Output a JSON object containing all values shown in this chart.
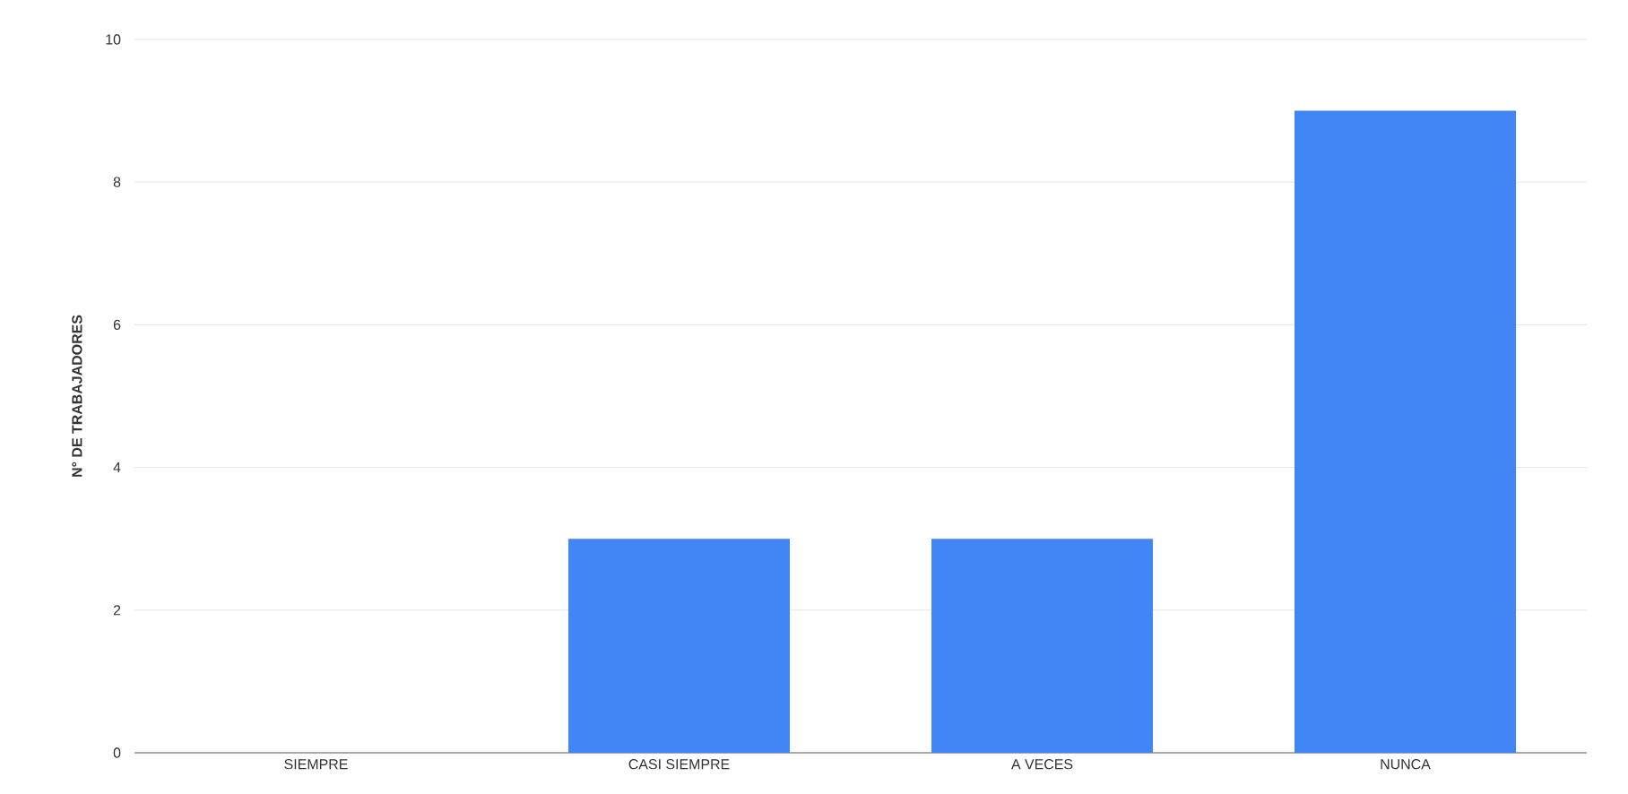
{
  "chart_data": {
    "type": "bar",
    "ylabel": "N° DE TRABAJADORES",
    "categories": [
      "SIEMPRE",
      "CASI SIEMPRE",
      "A VECES",
      "NUNCA"
    ],
    "values": [
      0,
      3,
      3,
      9
    ],
    "color": "#4285f4",
    "ylim": [
      0,
      10
    ],
    "yticks": [
      0,
      2,
      4,
      6,
      8,
      10
    ],
    "grid": "y"
  }
}
